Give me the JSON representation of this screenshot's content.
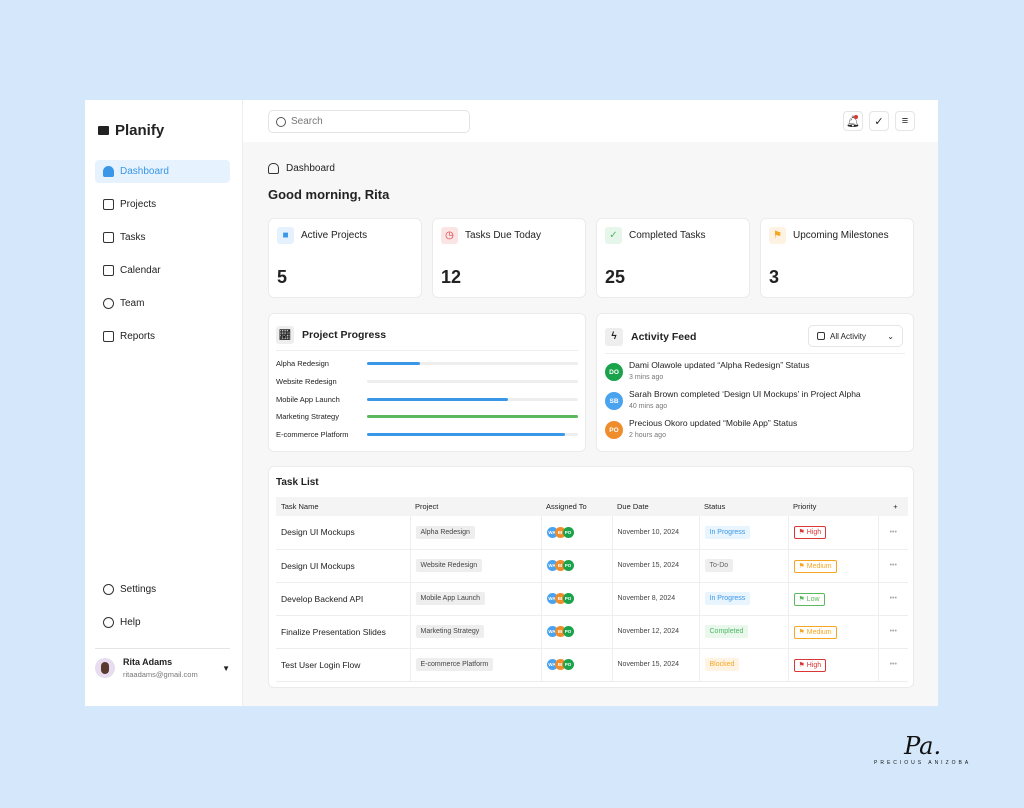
{
  "brand": "Planify",
  "sidebar": {
    "items": [
      {
        "label": "Dashboard"
      },
      {
        "label": "Projects"
      },
      {
        "label": "Tasks"
      },
      {
        "label": "Calendar"
      },
      {
        "label": "Team"
      },
      {
        "label": "Reports"
      }
    ],
    "settings": "Settings",
    "help": "Help",
    "user": {
      "name": "Rita Adams",
      "email": "ritaadams@gmail.com"
    }
  },
  "search": {
    "placeholder": "Search"
  },
  "breadcrumb": "Dashboard",
  "greeting": "Good morning, Rita",
  "stats": [
    {
      "label": "Active Projects",
      "value": "5",
      "color": "#3a97e8"
    },
    {
      "label": "Tasks Due Today",
      "value": "12",
      "color": "#d93636"
    },
    {
      "label": "Completed Tasks",
      "value": "25",
      "color": "#4cb963"
    },
    {
      "label": "Upcoming Milestones",
      "value": "3",
      "color": "#f5a623"
    }
  ],
  "progress": {
    "title": "Project Progress",
    "items": [
      {
        "name": "Alpha Redesign",
        "percent": 25,
        "color": "#3a97e8"
      },
      {
        "name": "Website Redesign",
        "percent": 0,
        "color": "#3a97e8"
      },
      {
        "name": "Mobile App Launch",
        "percent": 67,
        "color": "#3a97e8"
      },
      {
        "name": "Marketing Strategy",
        "percent": 100,
        "color": "#5cb85c"
      },
      {
        "name": "E-commerce Platform",
        "percent": 94,
        "color": "#3a97e8"
      }
    ]
  },
  "activity": {
    "title": "Activity Feed",
    "filter": "All Activity",
    "items": [
      {
        "initials": "DO",
        "color": "#1aa34a",
        "text": "Dami Olawole updated “Alpha Redesign” Status",
        "time": "3 mins ago"
      },
      {
        "initials": "SB",
        "color": "#4aa3ef",
        "text": "Sarah Brown completed ‘Design UI Mockups’ in Project Alpha",
        "time": "40 mins ago"
      },
      {
        "initials": "PO",
        "color": "#ef8c2b",
        "text": "Precious Okoro updated “Mobile App” Status",
        "time": "2 hours ago"
      }
    ]
  },
  "tasks": {
    "title": "Task List",
    "columns": [
      "Task Name",
      "Project",
      "Assigned To",
      "Due Date",
      "Status",
      "Priority",
      "+"
    ],
    "assignees": [
      "WA",
      "BI",
      "PO"
    ],
    "rows": [
      {
        "name": "Design UI Mockups",
        "project": "Alpha Redesign",
        "due": "November 10, 2024",
        "status": "In Progress",
        "priority": "High"
      },
      {
        "name": "Design UI Mockups",
        "project": "Website Redesign",
        "due": "November 15, 2024",
        "status": "To-Do",
        "priority": "Medium"
      },
      {
        "name": "Develop Backend API",
        "project": "Mobile App Launch",
        "due": "November 8, 2024",
        "status": "In Progress",
        "priority": "Low"
      },
      {
        "name": "Finalize Presentation Slides",
        "project": "Marketing Strategy",
        "due": "November 12, 2024",
        "status": "Completed",
        "priority": "Medium"
      },
      {
        "name": "Test User Login Flow",
        "project": "E-commerce Platform",
        "due": "November 15, 2024",
        "status": "Blocked",
        "priority": "High"
      }
    ]
  },
  "signature": {
    "mark": "Pa.",
    "name": "PRECIOUS ANIZOBA"
  }
}
